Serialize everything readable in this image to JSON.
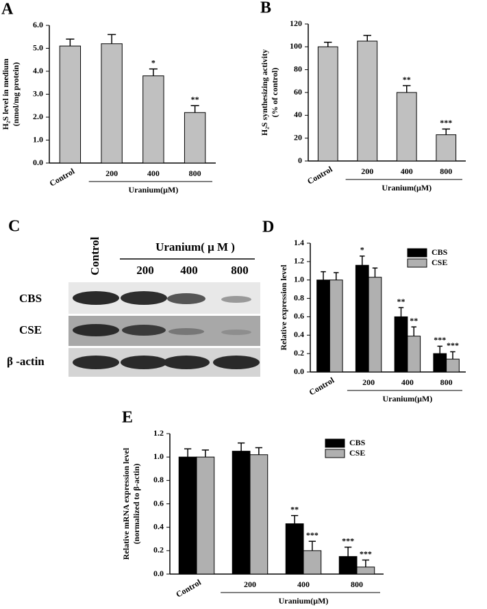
{
  "chart_data": [
    {
      "type": "bar",
      "panel": "A",
      "ylabel": [
        "H₂S level in medium",
        "(nmol/mg protein)"
      ],
      "categories": [
        "Control",
        "200",
        "400",
        "800"
      ],
      "group_label": "Uranium(μM)",
      "values": [
        5.1,
        5.2,
        3.8,
        2.2
      ],
      "errors": [
        0.3,
        0.4,
        0.3,
        0.3
      ],
      "labels": [
        null,
        null,
        "*",
        "**"
      ],
      "color": "#c0c0c0",
      "ylim": [
        0,
        6
      ],
      "yticks": [
        {
          "value": 0,
          "label": "0.0"
        },
        {
          "value": 1,
          "label": "1.0"
        },
        {
          "value": 2,
          "label": "2.0"
        },
        {
          "value": 3,
          "label": "3.0"
        },
        {
          "value": 4,
          "label": "4.0"
        },
        {
          "value": 5,
          "label": "5.0"
        },
        {
          "value": 6,
          "label": "6.0"
        }
      ]
    },
    {
      "type": "bar",
      "panel": "B",
      "ylabel": [
        "H₂S synthesizing activity",
        "(% of control)"
      ],
      "categories": [
        "Control",
        "200",
        "400",
        "800"
      ],
      "group_label": "Uranium(μM)",
      "values": [
        100,
        105,
        60,
        23
      ],
      "errors": [
        4,
        5,
        6,
        5
      ],
      "labels": [
        null,
        null,
        "**",
        "***"
      ],
      "color": "#c0c0c0",
      "ylim": [
        0,
        120
      ],
      "yticks": [
        0,
        20,
        40,
        60,
        80,
        100,
        120
      ]
    },
    {
      "type": "grouped-bar",
      "panel": "D",
      "ylabel": [
        "Relative expression level"
      ],
      "categories": [
        "Control",
        "200",
        "400",
        "800"
      ],
      "group_label": "Uranium(μM)",
      "series": [
        {
          "name": "CBS",
          "color": "#000000",
          "values": [
            1.0,
            1.16,
            0.6,
            0.2
          ],
          "errors": [
            0.09,
            0.1,
            0.1,
            0.08
          ],
          "labels": [
            null,
            "*",
            "**",
            "***"
          ]
        },
        {
          "name": "CSE",
          "color": "#b0b0b0",
          "values": [
            1.0,
            1.03,
            0.39,
            0.14
          ],
          "errors": [
            0.08,
            0.1,
            0.1,
            0.08
          ],
          "labels": [
            null,
            null,
            "**",
            "***"
          ]
        }
      ],
      "ylim": [
        0,
        1.4
      ],
      "yticks": [
        {
          "value": 0,
          "label": "0.0"
        },
        {
          "value": 0.2,
          "label": "0.2"
        },
        {
          "value": 0.4,
          "label": "0.4"
        },
        {
          "value": 0.6,
          "label": "0.6"
        },
        {
          "value": 0.8,
          "label": "0.8"
        },
        {
          "value": 1,
          "label": "1.0"
        },
        {
          "value": 1.2,
          "label": "1.2"
        },
        {
          "value": 1.4,
          "label": "1.4"
        }
      ],
      "legend": "upper right"
    },
    {
      "type": "grouped-bar",
      "panel": "E",
      "ylabel": [
        "Relative mRNA expression level",
        "(normalized to β-actin)"
      ],
      "categories": [
        "Control",
        "200",
        "400",
        "800"
      ],
      "group_label": "Uranium(μM)",
      "series": [
        {
          "name": "CBS",
          "color": "#000000",
          "values": [
            1.0,
            1.05,
            0.43,
            0.15
          ],
          "errors": [
            0.07,
            0.07,
            0.07,
            0.08
          ],
          "labels": [
            null,
            null,
            "**",
            "***"
          ]
        },
        {
          "name": "CSE",
          "color": "#b0b0b0",
          "values": [
            1.0,
            1.02,
            0.2,
            0.06
          ],
          "errors": [
            0.06,
            0.06,
            0.08,
            0.06
          ],
          "labels": [
            null,
            null,
            "***",
            "***"
          ]
        }
      ],
      "ylim": [
        0,
        1.2
      ],
      "yticks": [
        {
          "value": 0,
          "label": "0.0"
        },
        {
          "value": 0.2,
          "label": "0.2"
        },
        {
          "value": 0.4,
          "label": "0.4"
        },
        {
          "value": 0.6,
          "label": "0.6"
        },
        {
          "value": 0.8,
          "label": "0.8"
        },
        {
          "value": 1,
          "label": "1.0"
        },
        {
          "value": 1.2,
          "label": "1.2"
        }
      ],
      "legend": "upper right"
    }
  ],
  "blot": {
    "panel": "C",
    "control": "Control",
    "group_label": "Uranium( μ M )",
    "doses": [
      "200",
      "400",
      "800"
    ],
    "rows": [
      "CBS",
      "CSE",
      "β -actin"
    ]
  }
}
